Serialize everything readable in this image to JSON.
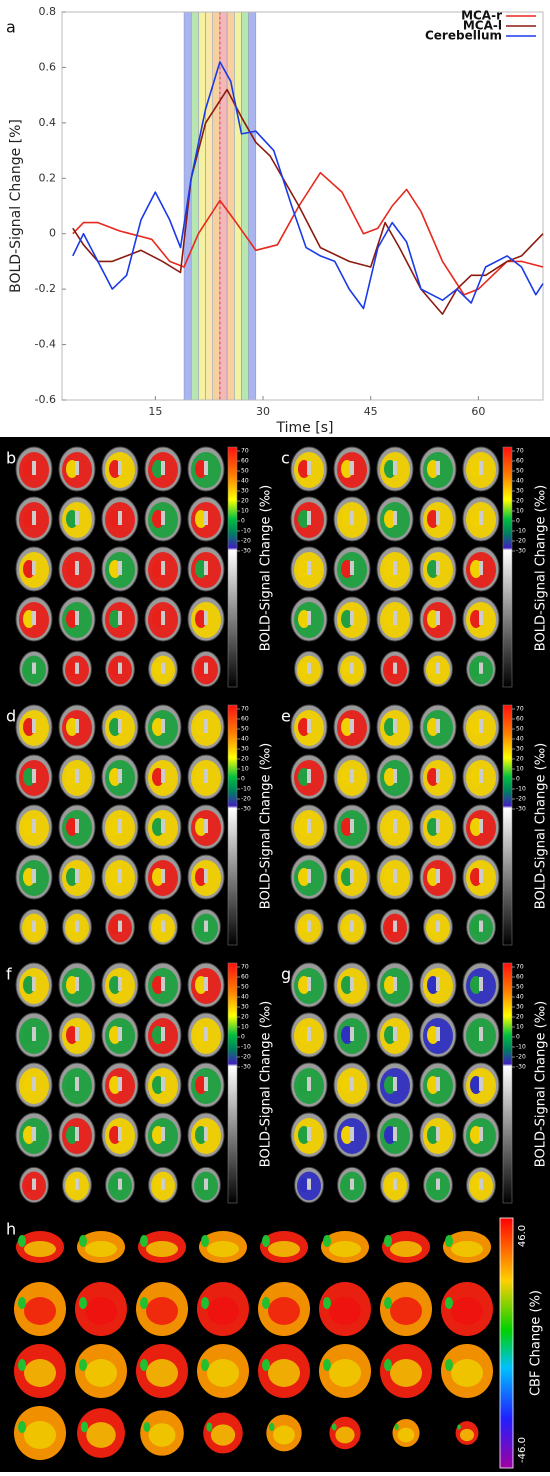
{
  "chart_data": {
    "type": "line",
    "panel_label": "a",
    "x_label": "Time [s]",
    "y_label": "BOLD-Signal Change [%]",
    "xlim": [
      2,
      69
    ],
    "xticks": [
      15,
      30,
      45,
      60
    ],
    "ylim": [
      -0.6,
      0.8
    ],
    "yticks": [
      -0.6,
      -0.4,
      -0.2,
      0,
      0.2,
      0.4,
      0.6,
      0.8
    ],
    "grid": false,
    "legend": "top-right",
    "highlight": {
      "xlim": [
        19,
        29
      ],
      "center": 24,
      "center_color": "#e03030",
      "colors": [
        "#aab4ee",
        "#b8e6b0",
        "#f2f2a0",
        "#fbe8a8",
        "#f8d0a0",
        "#f4b8b8",
        "#f8d0a0",
        "#f2f2a0",
        "#b8e6b0",
        "#aab4ee"
      ]
    },
    "series": [
      {
        "name": "MCA-r",
        "color": "#e8281c",
        "x": [
          3.5,
          5,
          7,
          10,
          13,
          14.5,
          17,
          19,
          21,
          24,
          26,
          29,
          32,
          35,
          38,
          41,
          44,
          46,
          48,
          50,
          52,
          55,
          58,
          60,
          62,
          64,
          66,
          69
        ],
        "values": [
          0.0,
          0.04,
          0.04,
          0.01,
          -0.01,
          -0.02,
          -0.1,
          -0.12,
          0.0,
          0.12,
          0.05,
          -0.06,
          -0.04,
          0.1,
          0.22,
          0.15,
          0.0,
          0.02,
          0.1,
          0.16,
          0.08,
          -0.1,
          -0.22,
          -0.2,
          -0.15,
          -0.1,
          -0.1,
          -0.12
        ]
      },
      {
        "name": "MCA-l",
        "color": "#8b1a10",
        "x": [
          3.5,
          5,
          7,
          9,
          11,
          13,
          16,
          18.5,
          20,
          22,
          25,
          27,
          29,
          31,
          35,
          38,
          42,
          45,
          47,
          49,
          52,
          55,
          57,
          59,
          61,
          64,
          66,
          69
        ],
        "values": [
          0.02,
          -0.04,
          -0.1,
          -0.1,
          -0.08,
          -0.06,
          -0.1,
          -0.14,
          0.2,
          0.4,
          0.52,
          0.42,
          0.33,
          0.28,
          0.1,
          -0.05,
          -0.1,
          -0.12,
          0.04,
          -0.05,
          -0.2,
          -0.29,
          -0.2,
          -0.15,
          -0.15,
          -0.1,
          -0.08,
          0.0
        ]
      },
      {
        "name": "Cerebellum",
        "color": "#1a3ae8",
        "x": [
          3.5,
          5,
          7,
          9,
          11,
          13,
          15,
          17,
          18.5,
          20,
          22,
          24,
          25.5,
          27,
          29,
          31.5,
          34,
          36,
          38,
          40,
          42,
          44,
          46,
          48,
          50,
          52,
          55,
          57,
          59,
          61,
          64,
          66,
          68,
          69
        ],
        "values": [
          -0.08,
          0.0,
          -0.1,
          -0.2,
          -0.15,
          0.05,
          0.15,
          0.05,
          -0.05,
          0.2,
          0.45,
          0.62,
          0.55,
          0.36,
          0.37,
          0.3,
          0.1,
          -0.05,
          -0.08,
          -0.1,
          -0.2,
          -0.27,
          -0.05,
          0.04,
          -0.03,
          -0.2,
          -0.24,
          -0.2,
          -0.25,
          -0.12,
          -0.08,
          -0.12,
          -0.22,
          -0.18
        ]
      }
    ]
  },
  "bold_panels": {
    "labels": [
      "b",
      "c",
      "d",
      "e",
      "f",
      "g"
    ],
    "colorbar": {
      "label": "BOLD-Signal Change (‰)",
      "ticks": [
        70,
        60,
        50,
        40,
        30,
        20,
        10,
        0,
        -10,
        -20,
        -30
      ]
    }
  },
  "cbf_panel": {
    "label": "h",
    "colorbar": {
      "label": "CBF Change (%)",
      "max": "46.0",
      "min": "-46.0"
    }
  }
}
